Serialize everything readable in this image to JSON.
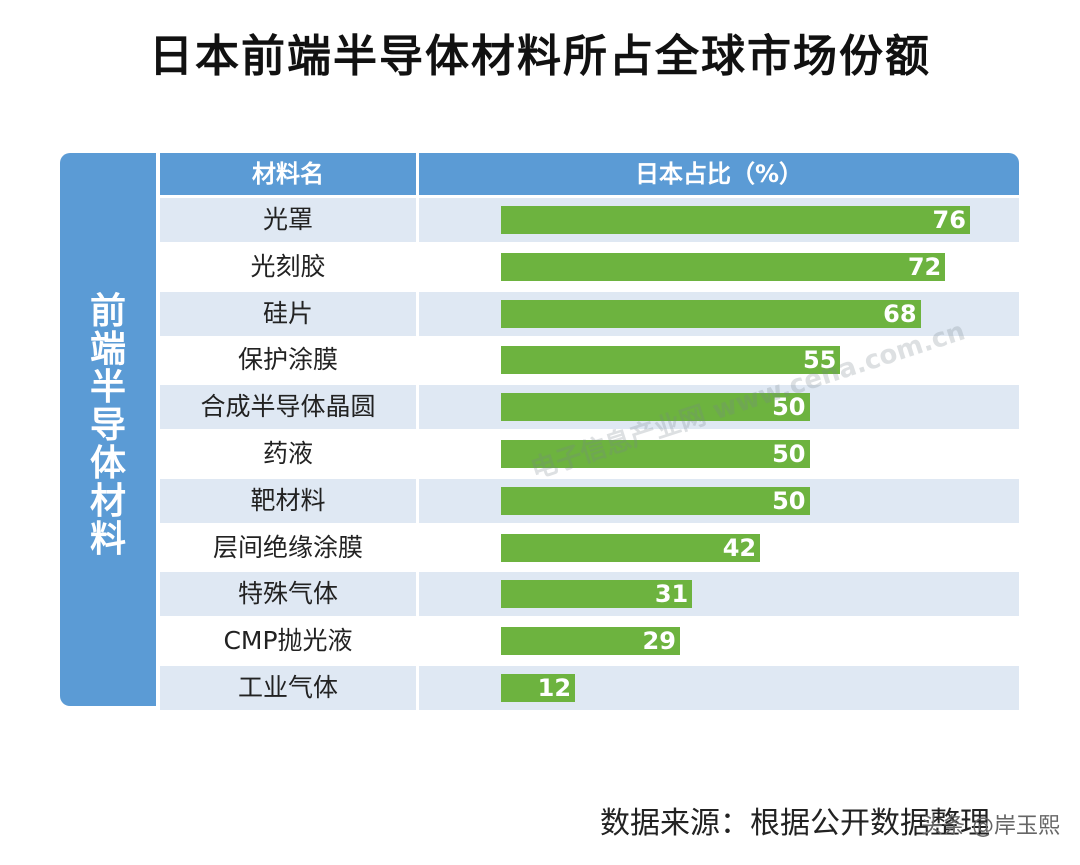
{
  "title": "日本前端半导体材料所占全球市场份额",
  "side_label": "前端半导体材料",
  "header": {
    "col1": "材料名",
    "col2": "日本占比（%）"
  },
  "chart_data": {
    "type": "bar",
    "orientation": "horizontal",
    "title": "日本前端半导体材料所占全球市场份额",
    "xlabel": "日本占比（%）",
    "ylabel": "材料名",
    "xlim": [
      0,
      100
    ],
    "categories": [
      "光罩",
      "光刻胶",
      "硅片",
      "保护涂膜",
      "合成半导体晶圆",
      "药液",
      "靶材料",
      "层间绝缘涂膜",
      "特殊气体",
      "CMP抛光液",
      "工业气体"
    ],
    "values": [
      76,
      72,
      68,
      55,
      50,
      50,
      50,
      42,
      31,
      29,
      12
    ]
  },
  "source": "数据来源：根据公开数据整理",
  "watermark": "电子信息产业网 www.cena.com.cn",
  "corner": "头条 @岸玉熙",
  "colors": {
    "header": "#5b9bd5",
    "bar": "#6db33f",
    "alt_row": "#dfe8f3"
  }
}
